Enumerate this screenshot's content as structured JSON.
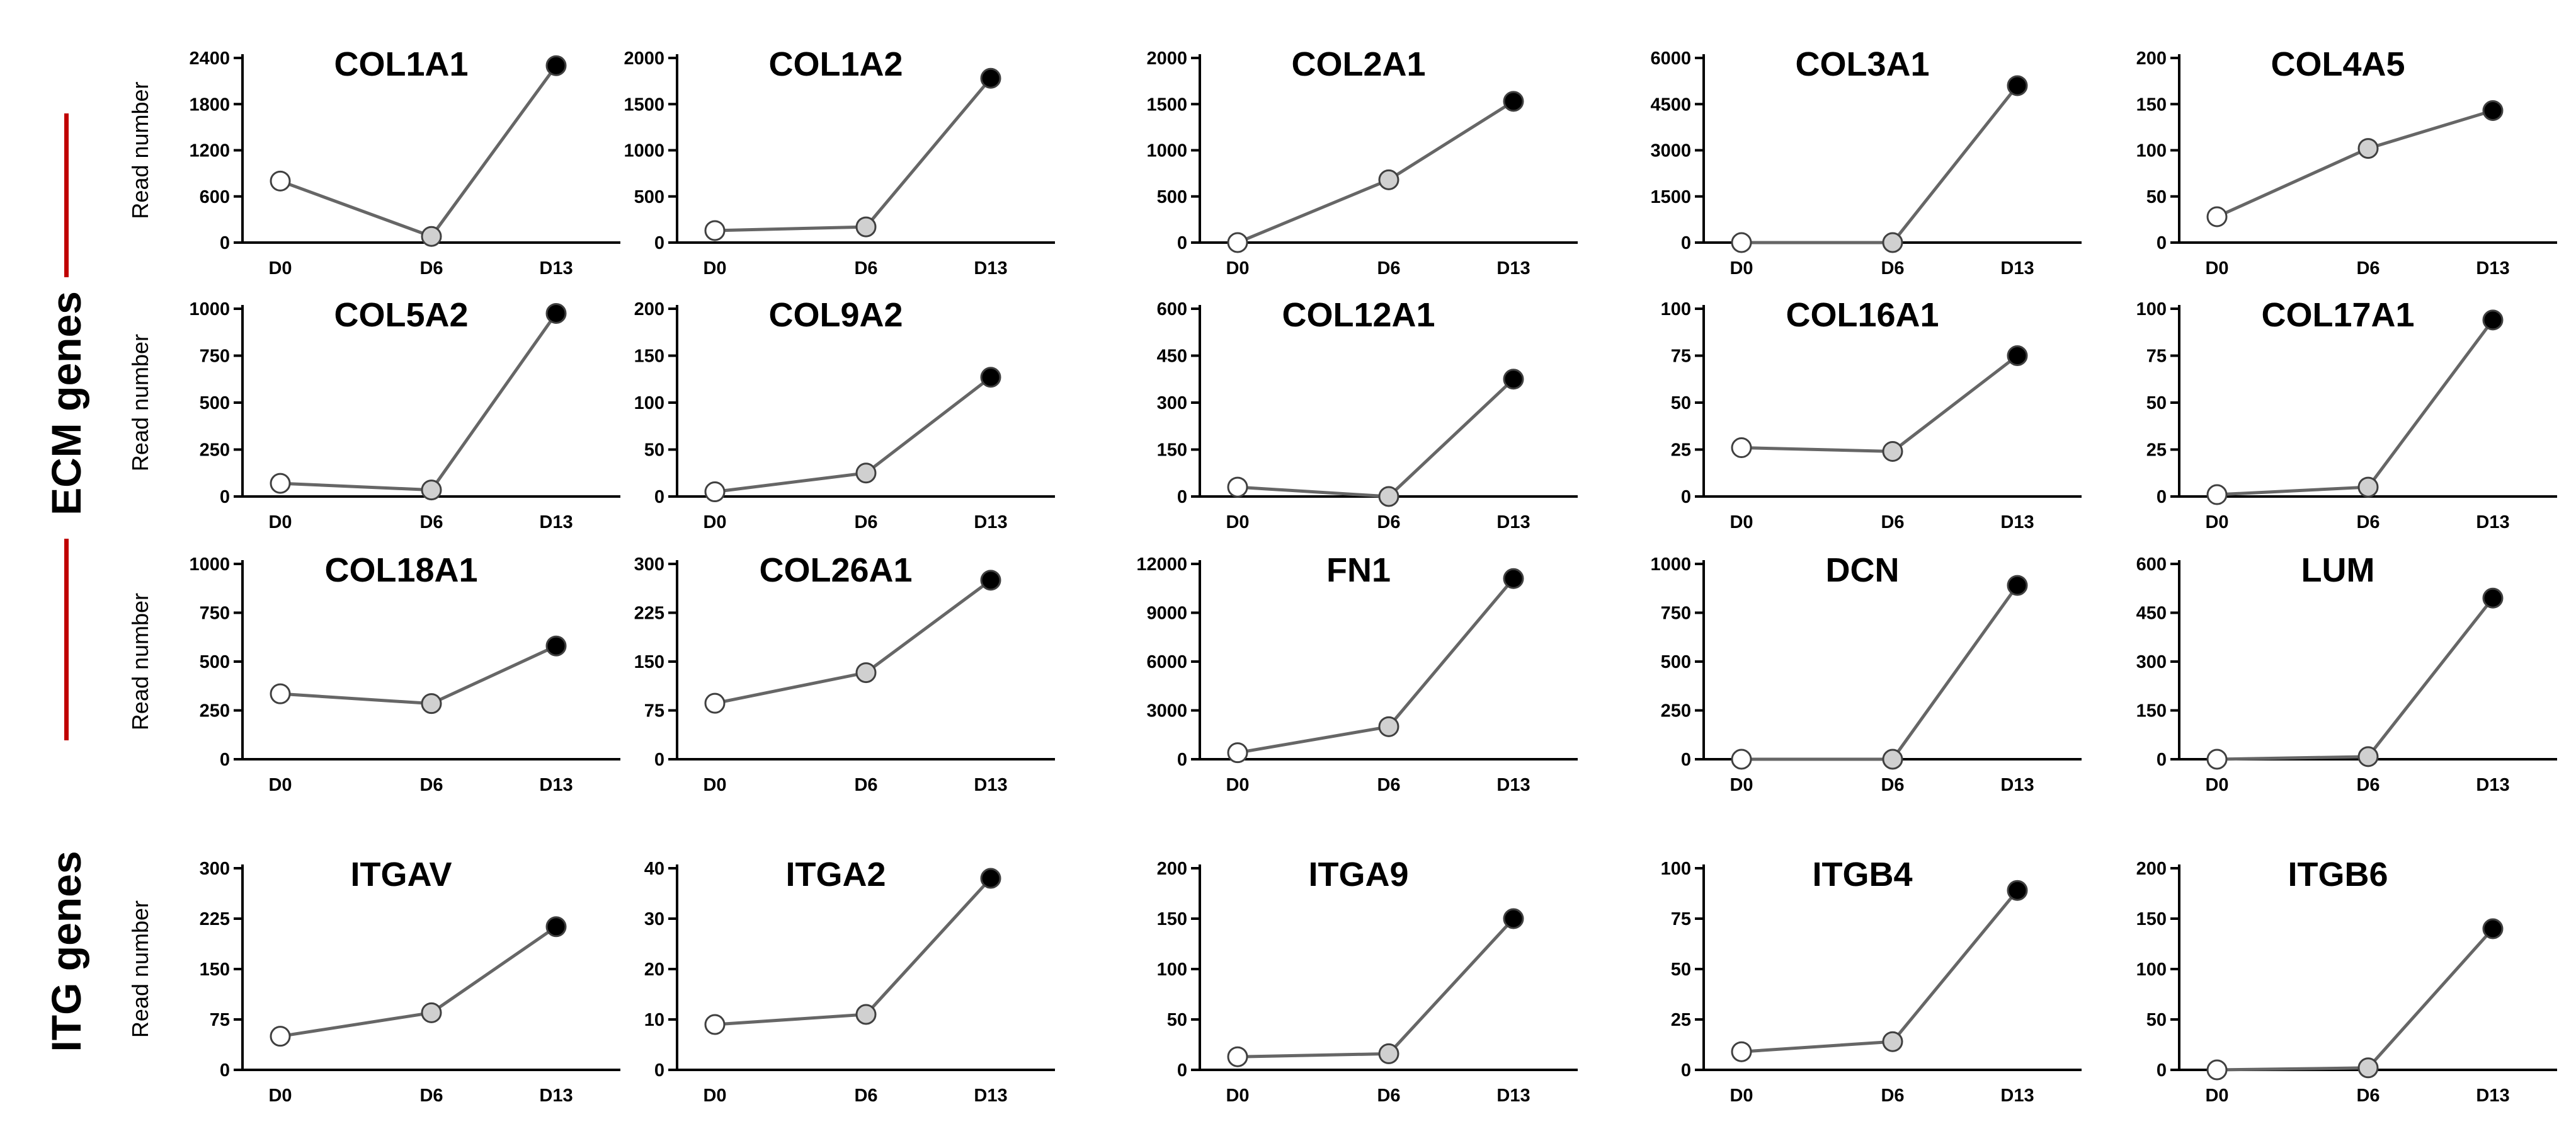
{
  "figure": {
    "side_labels": [
      "ECM genes",
      "ITG genes"
    ],
    "colors": {
      "axis": "#000000",
      "line": "#666666",
      "accent_bar": "#c00000",
      "d0_fill": "#ffffff",
      "d6_fill": "#d0d0d0",
      "d13_fill": "#000000"
    }
  },
  "chart_data": [
    {
      "type": "line",
      "title": "COL1A1",
      "ylabel": "Read number",
      "categories": [
        "D0",
        "D6",
        "D13"
      ],
      "values": [
        800,
        80,
        2300
      ],
      "ylim": [
        0,
        2400
      ],
      "yticks": [
        0,
        600,
        1200,
        1800,
        2400
      ]
    },
    {
      "type": "line",
      "title": "COL1A2",
      "ylabel": "",
      "categories": [
        "D0",
        "D6",
        "D13"
      ],
      "values": [
        130,
        170,
        1780
      ],
      "ylim": [
        0,
        2000
      ],
      "yticks": [
        0,
        500,
        1000,
        1500,
        2000
      ]
    },
    {
      "type": "line",
      "title": "COL2A1",
      "ylabel": "",
      "categories": [
        "D0",
        "D6",
        "D13"
      ],
      "values": [
        0,
        680,
        1530
      ],
      "ylim": [
        0,
        2000
      ],
      "yticks": [
        0,
        500,
        1000,
        1500,
        2000
      ]
    },
    {
      "type": "line",
      "title": "COL3A1",
      "ylabel": "",
      "categories": [
        "D0",
        "D6",
        "D13"
      ],
      "values": [
        0,
        0,
        5100
      ],
      "ylim": [
        0,
        6000
      ],
      "yticks": [
        0,
        1500,
        3000,
        4500,
        6000
      ]
    },
    {
      "type": "line",
      "title": "COL4A5",
      "ylabel": "",
      "categories": [
        "D0",
        "D6",
        "D13"
      ],
      "values": [
        28,
        102,
        143
      ],
      "ylim": [
        0,
        200
      ],
      "yticks": [
        0,
        50,
        100,
        150,
        200
      ]
    },
    {
      "type": "line",
      "title": "COL5A2",
      "ylabel": "Read number",
      "categories": [
        "D0",
        "D6",
        "D13"
      ],
      "values": [
        70,
        35,
        975
      ],
      "ylim": [
        0,
        1000
      ],
      "yticks": [
        0,
        250,
        500,
        750,
        1000
      ]
    },
    {
      "type": "line",
      "title": "COL9A2",
      "ylabel": "",
      "categories": [
        "D0",
        "D6",
        "D13"
      ],
      "values": [
        5,
        25,
        127
      ],
      "ylim": [
        0,
        200
      ],
      "yticks": [
        0,
        50,
        100,
        150,
        200
      ]
    },
    {
      "type": "line",
      "title": "COL12A1",
      "ylabel": "",
      "categories": [
        "D0",
        "D6",
        "D13"
      ],
      "values": [
        30,
        0,
        375
      ],
      "ylim": [
        0,
        600
      ],
      "yticks": [
        0,
        150,
        300,
        450,
        600
      ]
    },
    {
      "type": "line",
      "title": "COL16A1",
      "ylabel": "",
      "categories": [
        "D0",
        "D6",
        "D13"
      ],
      "values": [
        26,
        24,
        75
      ],
      "ylim": [
        0,
        100
      ],
      "yticks": [
        0,
        25,
        50,
        75,
        100
      ]
    },
    {
      "type": "line",
      "title": "COL17A1",
      "ylabel": "",
      "categories": [
        "D0",
        "D6",
        "D13"
      ],
      "values": [
        1,
        5,
        94
      ],
      "ylim": [
        0,
        100
      ],
      "yticks": [
        0,
        25,
        50,
        75,
        100
      ]
    },
    {
      "type": "line",
      "title": "COL18A1",
      "ylabel": "Read number",
      "categories": [
        "D0",
        "D6",
        "D13"
      ],
      "values": [
        335,
        285,
        580
      ],
      "ylim": [
        0,
        1000
      ],
      "yticks": [
        0,
        250,
        500,
        750,
        1000
      ]
    },
    {
      "type": "line",
      "title": "COL26A1",
      "ylabel": "",
      "categories": [
        "D0",
        "D6",
        "D13"
      ],
      "values": [
        86,
        133,
        275
      ],
      "ylim": [
        0,
        300
      ],
      "yticks": [
        0,
        75,
        150,
        225,
        300
      ]
    },
    {
      "type": "line",
      "title": "FN1",
      "ylabel": "",
      "categories": [
        "D0",
        "D6",
        "D13"
      ],
      "values": [
        400,
        2000,
        11100
      ],
      "ylim": [
        0,
        12000
      ],
      "yticks": [
        0,
        3000,
        6000,
        9000,
        12000
      ]
    },
    {
      "type": "line",
      "title": "DCN",
      "ylabel": "",
      "categories": [
        "D0",
        "D6",
        "D13"
      ],
      "values": [
        0,
        0,
        890
      ],
      "ylim": [
        0,
        1000
      ],
      "yticks": [
        0,
        250,
        500,
        750,
        1000
      ]
    },
    {
      "type": "line",
      "title": "LUM",
      "ylabel": "",
      "categories": [
        "D0",
        "D6",
        "D13"
      ],
      "values": [
        0,
        8,
        495
      ],
      "ylim": [
        0,
        600
      ],
      "yticks": [
        0,
        150,
        300,
        450,
        600
      ]
    },
    {
      "type": "line",
      "title": "ITGAV",
      "ylabel": "Read number",
      "categories": [
        "D0",
        "D6",
        "D13"
      ],
      "values": [
        50,
        85,
        213
      ],
      "ylim": [
        0,
        300
      ],
      "yticks": [
        0,
        75,
        150,
        225,
        300
      ]
    },
    {
      "type": "line",
      "title": "ITGA2",
      "ylabel": "",
      "categories": [
        "D0",
        "D6",
        "D13"
      ],
      "values": [
        9,
        11,
        38
      ],
      "ylim": [
        0,
        40
      ],
      "yticks": [
        0,
        10,
        20,
        30,
        40
      ]
    },
    {
      "type": "line",
      "title": "ITGA9",
      "ylabel": "",
      "categories": [
        "D0",
        "D6",
        "D13"
      ],
      "values": [
        13,
        16,
        150
      ],
      "ylim": [
        0,
        200
      ],
      "yticks": [
        0,
        50,
        100,
        150,
        200
      ]
    },
    {
      "type": "line",
      "title": "ITGB4",
      "ylabel": "",
      "categories": [
        "D0",
        "D6",
        "D13"
      ],
      "values": [
        9,
        14,
        89
      ],
      "ylim": [
        0,
        100
      ],
      "yticks": [
        0,
        25,
        50,
        75,
        100
      ]
    },
    {
      "type": "line",
      "title": "ITGB6",
      "ylabel": "",
      "categories": [
        "D0",
        "D6",
        "D13"
      ],
      "values": [
        0,
        2,
        140
      ],
      "ylim": [
        0,
        200
      ],
      "yticks": [
        0,
        50,
        100,
        150,
        200
      ]
    }
  ]
}
